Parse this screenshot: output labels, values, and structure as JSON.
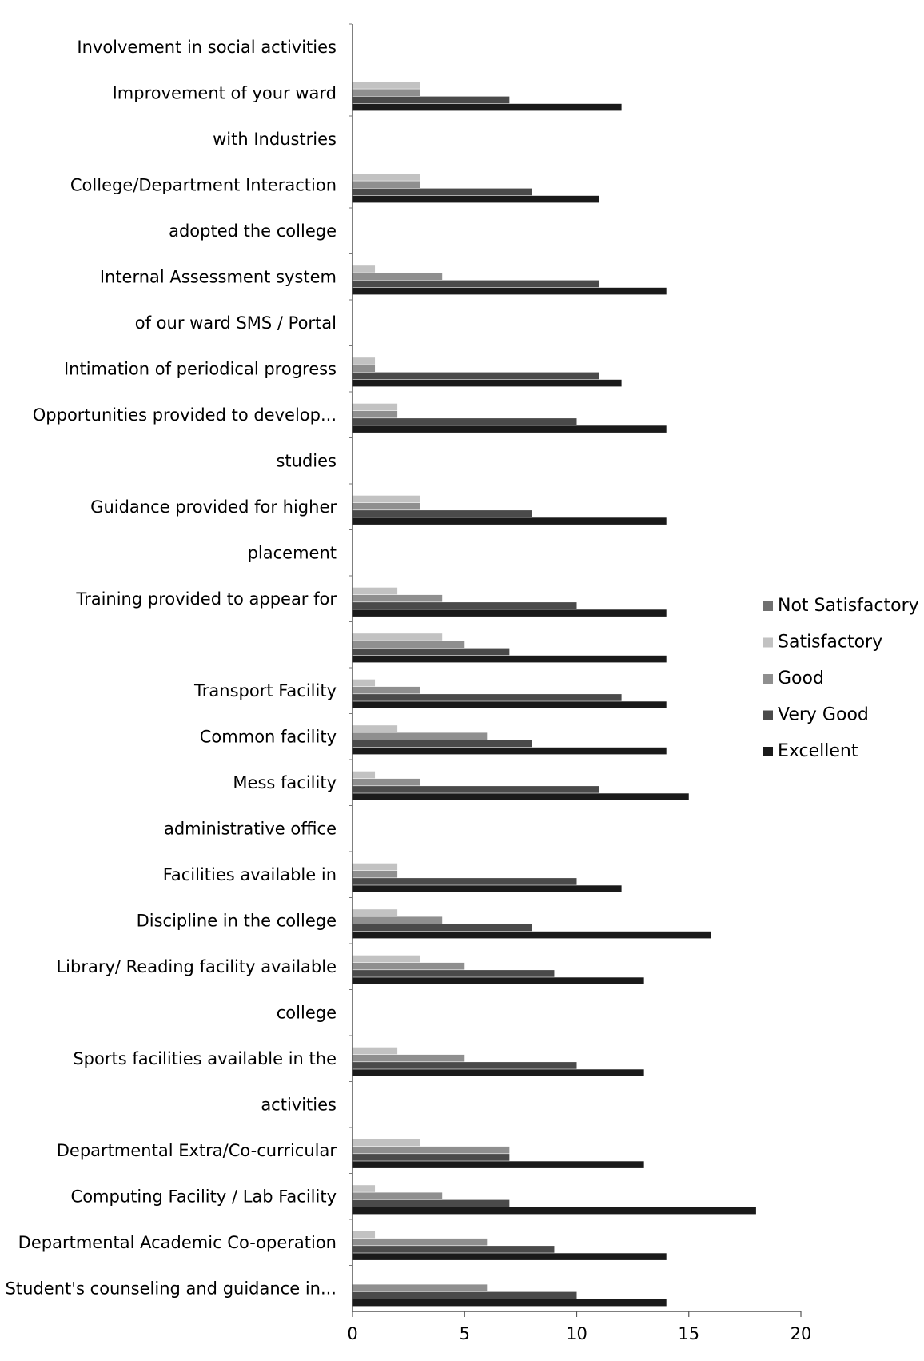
{
  "chart_data": {
    "type": "bar",
    "orientation": "horizontal",
    "grid": false,
    "legend_position": "right",
    "xlim": [
      0,
      20
    ],
    "x_ticks": [
      "0",
      "5",
      "10",
      "15",
      "20"
    ],
    "category_labels": [
      "Involvement in social activities",
      "Improvement of your ward",
      "with Industries",
      "College/Department Interaction",
      "adopted the college",
      "Internal Assessment system",
      "of our ward SMS / Portal",
      "Intimation of periodical progress",
      "Opportunities provided to develop...",
      "studies",
      "Guidance provided for higher",
      "placement",
      "Training provided to appear for",
      "",
      "Transport Facility",
      "Common facility",
      "Mess facility",
      "administrative office",
      "Facilities available in",
      "Discipline in the college",
      "Library/ Reading facility available",
      "college",
      "Sports facilities available in the",
      "activities",
      "Departmental Extra/Co-curricular",
      "Computing Facility / Lab Facility",
      "Departmental Academic Co-operation",
      "Student's counseling and guidance in..."
    ],
    "legend": [
      {
        "name": "Not Satisfactory",
        "color": "#707070"
      },
      {
        "name": "Satisfactory",
        "color": "#c2c2c2"
      },
      {
        "name": "Good",
        "color": "#8f8f8f"
      },
      {
        "name": "Very Good",
        "color": "#4a4a4a"
      },
      {
        "name": "Excellent",
        "color": "#1a1a1a"
      }
    ],
    "series": [
      {
        "name": "Not Satisfactory",
        "color": "#707070",
        "values": [
          null,
          0,
          null,
          0,
          null,
          0,
          null,
          0,
          0,
          null,
          0,
          null,
          0,
          0,
          0,
          0,
          0,
          null,
          0,
          0,
          0,
          null,
          0,
          null,
          0,
          0,
          0,
          0
        ]
      },
      {
        "name": "Satisfactory",
        "color": "#c2c2c2",
        "values": [
          null,
          3,
          null,
          3,
          null,
          1,
          null,
          1,
          2,
          null,
          3,
          null,
          2,
          4,
          1,
          2,
          1,
          null,
          2,
          2,
          3,
          null,
          2,
          null,
          3,
          1,
          1,
          0
        ]
      },
      {
        "name": "Good",
        "color": "#8f8f8f",
        "values": [
          null,
          3,
          null,
          3,
          null,
          4,
          null,
          1,
          2,
          null,
          3,
          null,
          4,
          5,
          3,
          6,
          3,
          null,
          2,
          4,
          5,
          null,
          5,
          null,
          7,
          4,
          6,
          6
        ]
      },
      {
        "name": "Very Good",
        "color": "#4a4a4a",
        "values": [
          null,
          7,
          null,
          8,
          null,
          11,
          null,
          11,
          10,
          null,
          8,
          null,
          10,
          7,
          12,
          8,
          11,
          null,
          10,
          8,
          9,
          null,
          10,
          null,
          7,
          7,
          9,
          10
        ]
      },
      {
        "name": "Excellent",
        "color": "#1a1a1a",
        "values": [
          null,
          12,
          null,
          11,
          null,
          14,
          null,
          12,
          14,
          null,
          14,
          null,
          14,
          14,
          14,
          14,
          15,
          null,
          12,
          16,
          13,
          null,
          13,
          null,
          13,
          18,
          14,
          14
        ]
      }
    ]
  }
}
